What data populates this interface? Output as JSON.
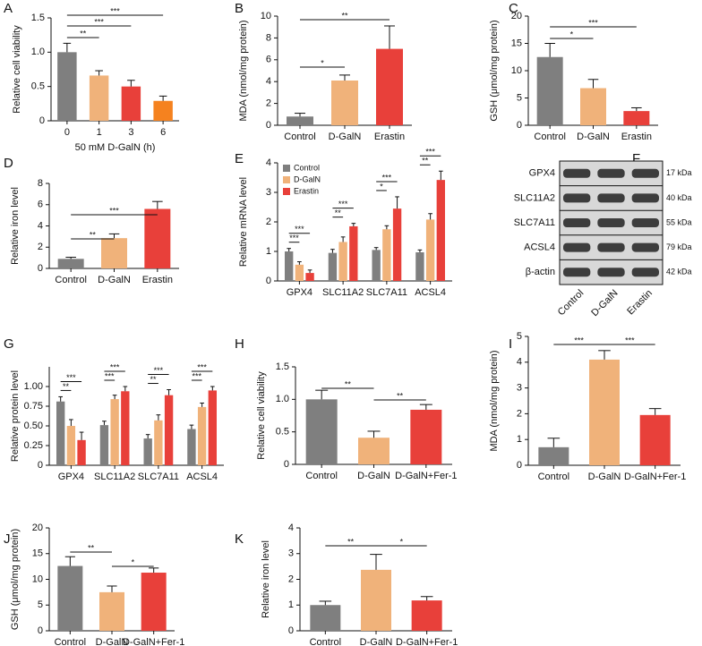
{
  "chart_data": [
    {
      "type": "bar",
      "panel_label": "A",
      "y_label": "Relative cell viability",
      "x_label": "50 mM D-GalN (h)",
      "categories": [
        "0",
        "1",
        "3",
        "6"
      ],
      "values": [
        1.0,
        0.66,
        0.5,
        0.29
      ],
      "errors": [
        0.13,
        0.07,
        0.09,
        0.07
      ],
      "colors": [
        "#7f7f7f",
        "#f0b27a",
        "#e8403a",
        "#f5821f"
      ],
      "ylim": [
        0,
        1.5
      ],
      "yticks": [
        0,
        0.5,
        {
          "value": 1,
          "label": "1.0"
        },
        1.5
      ],
      "significance": [
        {
          "pair": [
            0,
            1
          ],
          "label": "**"
        },
        {
          "pair": [
            0,
            2
          ],
          "label": "***"
        },
        {
          "pair": [
            0,
            3
          ],
          "label": "***"
        }
      ]
    },
    {
      "type": "bar",
      "panel_label": "B",
      "y_label": "MDA (nmol/mg protein)",
      "categories": [
        "Control",
        "D-GalN",
        "Erastin"
      ],
      "values": [
        0.8,
        4.1,
        7.0
      ],
      "errors": [
        0.3,
        0.5,
        2.1
      ],
      "colors": [
        "#7f7f7f",
        "#f0b27a",
        "#e8403a"
      ],
      "ylim": [
        0,
        10
      ],
      "yticks": [
        0,
        2,
        4,
        6,
        8,
        10
      ],
      "significance": [
        {
          "pair": [
            0,
            1
          ],
          "label": "*"
        },
        {
          "pair": [
            0,
            2
          ],
          "label": "**"
        }
      ]
    },
    {
      "type": "bar",
      "panel_label": "C",
      "y_label": "GSH (μmol/mg protein)",
      "categories": [
        "Control",
        "D-GalN",
        "Erastin"
      ],
      "values": [
        12.5,
        6.8,
        2.6
      ],
      "errors": [
        2.5,
        1.6,
        0.6
      ],
      "colors": [
        "#7f7f7f",
        "#f0b27a",
        "#e8403a"
      ],
      "ylim": [
        0,
        20
      ],
      "yticks": [
        0,
        5,
        10,
        15,
        20
      ],
      "significance": [
        {
          "pair": [
            0,
            1
          ],
          "label": "*"
        },
        {
          "pair": [
            0,
            2
          ],
          "label": "***"
        }
      ]
    },
    {
      "type": "bar",
      "panel_label": "D",
      "y_label": "Relative iron level",
      "categories": [
        "Control",
        "D-GalN",
        "Erastin"
      ],
      "values": [
        0.9,
        2.85,
        5.6
      ],
      "errors": [
        0.15,
        0.4,
        0.7
      ],
      "colors": [
        "#7f7f7f",
        "#f0b27a",
        "#e8403a"
      ],
      "ylim": [
        0,
        8
      ],
      "yticks": [
        0,
        2,
        4,
        6,
        8
      ],
      "significance": [
        {
          "pair": [
            0,
            1
          ],
          "label": "**"
        },
        {
          "pair": [
            0,
            2
          ],
          "label": "***"
        }
      ]
    },
    {
      "type": "grouped-bar",
      "panel_label": "E",
      "y_label": "Relative mRNA level",
      "legend": true,
      "categories": [
        "GPX4",
        "SLC11A2",
        "SLC7A11",
        "ACSL4"
      ],
      "series": [
        {
          "name": "Control",
          "color": "#7f7f7f",
          "values": [
            1.0,
            0.95,
            1.05,
            0.97
          ],
          "errors": [
            0.1,
            0.12,
            0.08,
            0.08
          ]
        },
        {
          "name": "D-GalN",
          "color": "#f0b27a",
          "values": [
            0.55,
            1.32,
            1.75,
            2.08
          ],
          "errors": [
            0.1,
            0.17,
            0.12,
            0.2
          ]
        },
        {
          "name": "Erastin",
          "color": "#e8403a",
          "values": [
            0.27,
            1.85,
            2.45,
            3.42
          ],
          "errors": [
            0.1,
            0.1,
            0.4,
            0.3
          ]
        }
      ],
      "ylim": [
        0,
        4
      ],
      "yticks": [
        0,
        1,
        2,
        3,
        4
      ],
      "significance": [
        {
          "category": 0,
          "pair": [
            0,
            1
          ],
          "label": "***"
        },
        {
          "category": 0,
          "pair": [
            0,
            2
          ],
          "label": "***"
        },
        {
          "category": 1,
          "pair": [
            0,
            1
          ],
          "label": "**"
        },
        {
          "category": 1,
          "pair": [
            0,
            2
          ],
          "label": "***"
        },
        {
          "category": 2,
          "pair": [
            0,
            1
          ],
          "label": "*"
        },
        {
          "category": 2,
          "pair": [
            0,
            2
          ],
          "label": "***"
        },
        {
          "category": 3,
          "pair": [
            0,
            1
          ],
          "label": "**"
        },
        {
          "category": 3,
          "pair": [
            0,
            2
          ],
          "label": "***"
        }
      ]
    },
    {
      "type": "blot",
      "panel_label": "F",
      "row_labels": [
        "GPX4",
        "SLC11A2",
        "SLC7A11",
        "ACSL4",
        "β-actin"
      ],
      "sizes": [
        "17 kDa",
        "40 kDa",
        "55 kDa",
        "79 kDa",
        "42 kDa"
      ],
      "lanes": [
        "Control",
        "D-GalN",
        "Erastin"
      ]
    },
    {
      "type": "grouped-bar",
      "panel_label": "G",
      "y_label": "Relative protein level",
      "categories": [
        "GPX4",
        "SLC11A2",
        "SLC7A11",
        "ACSL4"
      ],
      "series": [
        {
          "name": "Control",
          "color": "#7f7f7f",
          "values": [
            0.81,
            0.51,
            0.34,
            0.46
          ],
          "errors": [
            0.06,
            0.05,
            0.05,
            0.05
          ]
        },
        {
          "name": "D-GalN",
          "color": "#f0b27a",
          "values": [
            0.5,
            0.84,
            0.57,
            0.74
          ],
          "errors": [
            0.08,
            0.05,
            0.07,
            0.05
          ]
        },
        {
          "name": "Erastin",
          "color": "#e8403a",
          "values": [
            0.32,
            0.94,
            0.89,
            0.95
          ],
          "errors": [
            0.1,
            0.06,
            0.07,
            0.05
          ]
        }
      ],
      "ylim": [
        0,
        1.25
      ],
      "yticks": [
        0,
        0.25,
        {
          "value": 0.5,
          "label": "0.50"
        },
        0.75,
        {
          "value": 1,
          "label": "1.00"
        }
      ],
      "significance": [
        {
          "category": 0,
          "pair": [
            0,
            1
          ],
          "label": "**"
        },
        {
          "category": 0,
          "pair": [
            0,
            2
          ],
          "label": "***"
        },
        {
          "category": 1,
          "pair": [
            0,
            1
          ],
          "label": "***"
        },
        {
          "category": 1,
          "pair": [
            0,
            2
          ],
          "label": "***"
        },
        {
          "category": 2,
          "pair": [
            0,
            1
          ],
          "label": "**"
        },
        {
          "category": 2,
          "pair": [
            0,
            2
          ],
          "label": "***"
        },
        {
          "category": 3,
          "pair": [
            0,
            1
          ],
          "label": "***"
        },
        {
          "category": 3,
          "pair": [
            0,
            2
          ],
          "label": "***"
        }
      ]
    },
    {
      "type": "bar",
      "panel_label": "H",
      "y_label": "Relative cell viability",
      "categories": [
        "Control",
        "D-GalN",
        "D-GalN+Fer-1"
      ],
      "values": [
        1.0,
        0.41,
        0.84
      ],
      "errors": [
        0.14,
        0.1,
        0.08
      ],
      "colors": [
        "#7f7f7f",
        "#f0b27a",
        "#e8403a"
      ],
      "ylim": [
        0,
        1.5
      ],
      "yticks": [
        0,
        0.5,
        {
          "value": 1,
          "label": "1.0"
        },
        1.5
      ],
      "significance": [
        {
          "pair": [
            0,
            1
          ],
          "label": "**"
        },
        {
          "pair": [
            1,
            2
          ],
          "label": "**"
        }
      ]
    },
    {
      "type": "bar",
      "panel_label": "I",
      "y_label": "MDA (nmol/mg protein)",
      "categories": [
        "Control",
        "D-GalN",
        "D-GalN+Fer-1"
      ],
      "values": [
        0.7,
        4.1,
        1.95
      ],
      "errors": [
        0.35,
        0.35,
        0.25
      ],
      "colors": [
        "#7f7f7f",
        "#f0b27a",
        "#e8403a"
      ],
      "ylim": [
        0,
        5
      ],
      "yticks": [
        0,
        1,
        2,
        3,
        4,
        5
      ],
      "significance": [
        {
          "pair": [
            0,
            1
          ],
          "label": "***"
        },
        {
          "pair": [
            1,
            2
          ],
          "label": "***"
        }
      ]
    },
    {
      "type": "bar",
      "panel_label": "J",
      "y_label": "GSH (μmol/mg protein)",
      "categories": [
        "Control",
        "D-GalN",
        "D-GalN+Fer-1"
      ],
      "values": [
        12.6,
        7.5,
        11.3
      ],
      "errors": [
        1.8,
        1.2,
        0.9
      ],
      "colors": [
        "#7f7f7f",
        "#f0b27a",
        "#e8403a"
      ],
      "ylim": [
        0,
        20
      ],
      "yticks": [
        0,
        5,
        10,
        15,
        20
      ],
      "significance": [
        {
          "pair": [
            0,
            1
          ],
          "label": "**"
        },
        {
          "pair": [
            1,
            2
          ],
          "label": "*"
        }
      ]
    },
    {
      "type": "bar",
      "panel_label": "K",
      "y_label": "Relative iron level",
      "categories": [
        "Control",
        "D-GalN",
        "D-GalN+Fer-1"
      ],
      "values": [
        1.0,
        2.37,
        1.18
      ],
      "errors": [
        0.15,
        0.6,
        0.15
      ],
      "colors": [
        "#7f7f7f",
        "#f0b27a",
        "#e8403a"
      ],
      "ylim": [
        0,
        4
      ],
      "yticks": [
        0,
        1,
        2,
        3,
        4
      ],
      "significance": [
        {
          "pair": [
            0,
            1
          ],
          "label": "**"
        },
        {
          "pair": [
            1,
            2
          ],
          "label": "*"
        }
      ]
    }
  ]
}
